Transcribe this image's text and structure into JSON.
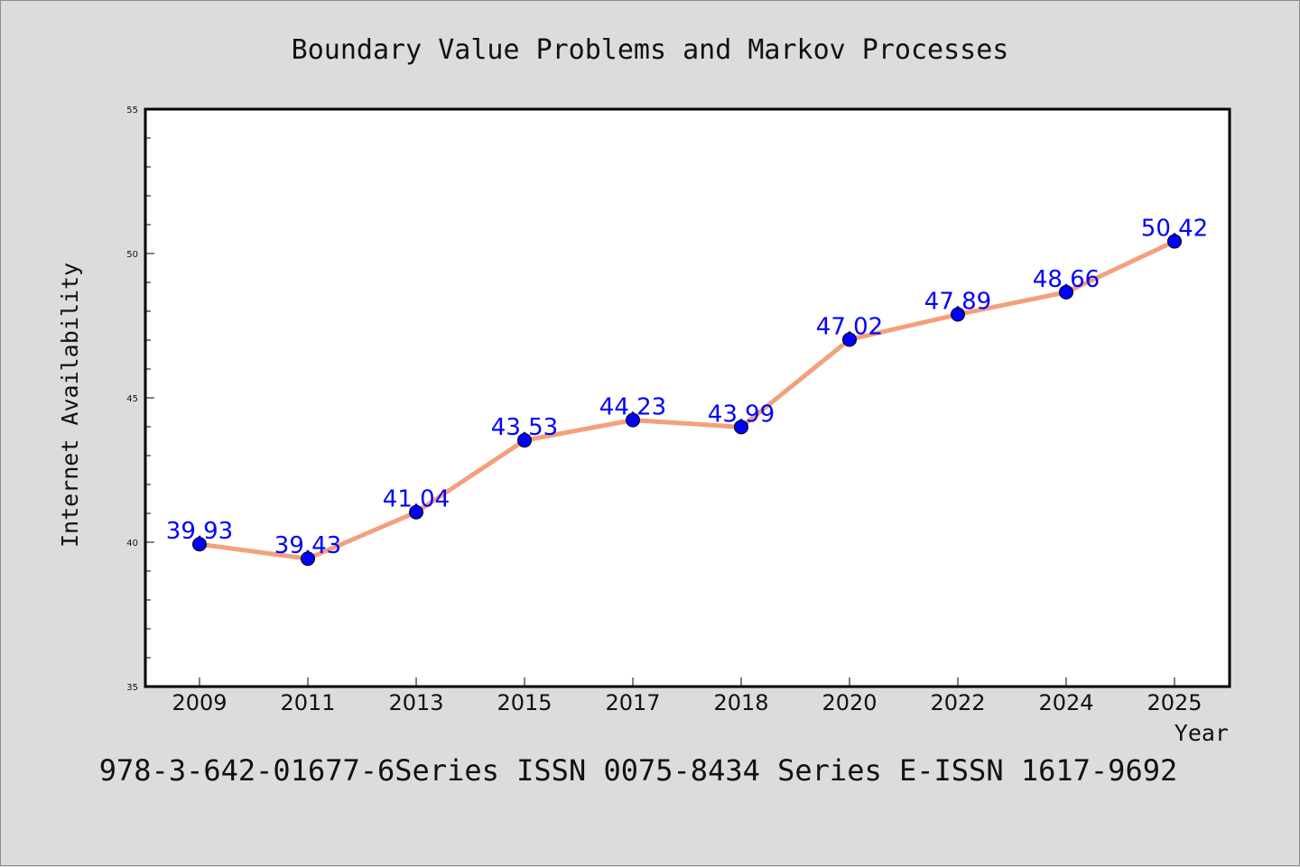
{
  "chart_data": {
    "type": "line",
    "title": "Boundary Value Problems and Markov Processes",
    "xlabel": "Year",
    "ylabel": "Internet Availability",
    "categories": [
      "2009",
      "2011",
      "2013",
      "2015",
      "2017",
      "2018",
      "2020",
      "2022",
      "2024",
      "2025"
    ],
    "series": [
      {
        "values": [
          39.93,
          39.43,
          41.04,
          43.53,
          44.23,
          43.99,
          47.02,
          47.89,
          48.66,
          50.42
        ],
        "labels": [
          "39.93",
          "39.43",
          "41.04",
          "43.53",
          "44.23",
          "43.99",
          "47.02",
          "47.89",
          "48.66",
          "50.42"
        ]
      }
    ],
    "ylim": [
      35,
      55
    ],
    "yticks": [
      "35",
      "40",
      "45",
      "50",
      "55"
    ],
    "grid": false,
    "legend": "none",
    "colors": {
      "line": "#f4a07c",
      "marker": "#0000ff",
      "data_label": "#0000ff",
      "background": "#dcdcdc",
      "plot_background": "#ffffff"
    }
  },
  "footer": "978-3-642-01677-6Series ISSN 0075-8434 Series E-ISSN 1617-9692"
}
